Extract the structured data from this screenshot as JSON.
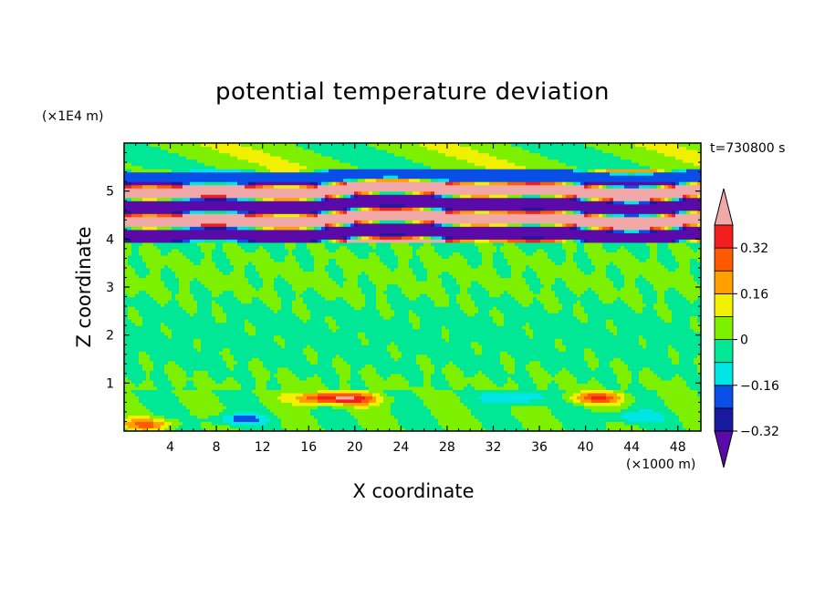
{
  "chart_data": {
    "type": "heatmap",
    "title": "potential temperature deviation",
    "xlabel": "X coordinate",
    "ylabel": "Z coordinate",
    "x_unit_label": "(×1000 m)",
    "y_unit_label": "(×1E4 m)",
    "annotation": "t=730800 s",
    "xlim": [
      0,
      50
    ],
    "ylim": [
      0,
      6
    ],
    "x_ticks": [
      4,
      8,
      12,
      16,
      20,
      24,
      28,
      32,
      36,
      40,
      44,
      48
    ],
    "y_ticks": [
      1,
      2,
      3,
      4,
      5
    ],
    "colorbar": {
      "tick_labels": [
        "0.32",
        "0.16",
        "0",
        "−0.16",
        "−0.32"
      ],
      "tick_values": [
        0.32,
        0.16,
        0,
        -0.16,
        -0.32
      ],
      "levels": [
        -0.4,
        -0.32,
        -0.24,
        -0.16,
        -0.08,
        0,
        0.08,
        0.16,
        0.24,
        0.32,
        0.4
      ],
      "colors": [
        "#5a0aa8",
        "#1a1aa0",
        "#0a4ee8",
        "#00e6e6",
        "#00e896",
        "#7df000",
        "#f0f000",
        "#ffa000",
        "#ff5a00",
        "#f01e1e",
        "#f0a8a8"
      ],
      "extend": "both"
    },
    "features": [
      {
        "z_range": [
          4.0,
          5.4
        ],
        "pattern": "alternating horizontal bands",
        "values": [
          -0.4,
          0.4
        ]
      },
      {
        "z_range": [
          0.8,
          4.0
        ],
        "pattern": "weak small-scale perturbations",
        "values": [
          -0.08,
          0.08
        ]
      },
      {
        "z_range": [
          0.0,
          0.8
        ],
        "pattern": "near-surface perturbations",
        "values": [
          -0.16,
          0.32
        ]
      }
    ]
  }
}
